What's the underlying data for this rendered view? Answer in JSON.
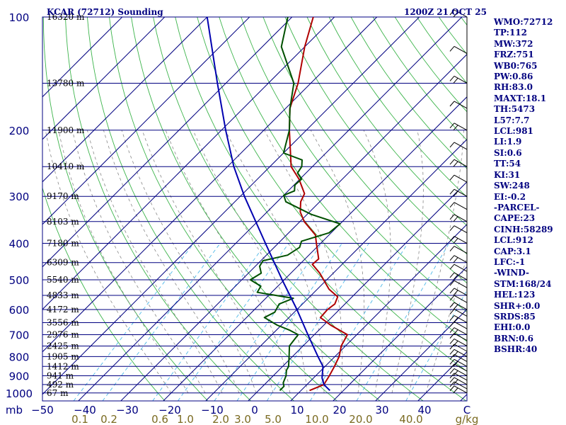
{
  "chart_data": {
    "type": "skew-t sounding",
    "title": "KCAR (72712) Sounding",
    "time_label": "1200Z 21 OCT 25",
    "pressure_axis_unit": "mb",
    "pressure_levels": [
      100,
      200,
      300,
      400,
      500,
      600,
      700,
      800,
      900,
      1000
    ],
    "height_labels": [
      {
        "p": 100,
        "label": "16320 m"
      },
      {
        "p": 150,
        "label": "13780 m"
      },
      {
        "p": 200,
        "label": "11900 m"
      },
      {
        "p": 250,
        "label": "10410 m"
      },
      {
        "p": 300,
        "label": "9170 m"
      },
      {
        "p": 350,
        "label": "8103 m"
      },
      {
        "p": 400,
        "label": "7180 m"
      },
      {
        "p": 450,
        "label": "6309 m"
      },
      {
        "p": 500,
        "label": "5540 m"
      },
      {
        "p": 550,
        "label": "4833 m"
      },
      {
        "p": 600,
        "label": "4172 m"
      },
      {
        "p": 650,
        "label": "3556 m"
      },
      {
        "p": 700,
        "label": "2976 m"
      },
      {
        "p": 750,
        "label": "2425 m"
      },
      {
        "p": 800,
        "label": "1905 m"
      },
      {
        "p": 850,
        "label": "1412 m"
      },
      {
        "p": 900,
        "label": "941 m"
      },
      {
        "p": 950,
        "label": "492 m"
      },
      {
        "p": 1000,
        "label": "67 m"
      }
    ],
    "temperature_ticks": [
      "-50",
      "-40",
      "-30",
      "-20",
      "-10",
      "0",
      "10",
      "20",
      "30",
      "40",
      "C"
    ],
    "mixing_ratio_labels": [
      "0.1",
      "0.2",
      "0.6",
      "1.0",
      "2.0",
      "3.0",
      "5.0",
      "10.0",
      "20.0",
      "40.0",
      "g/kg"
    ],
    "mixing_ratio_values": [
      0.1,
      0.2,
      0.6,
      1.0,
      2.0,
      3.0,
      5.0,
      10.0,
      20.0,
      40.0
    ],
    "series": [
      {
        "key": "temperature",
        "color": "#b00000",
        "points": [
          [
            985,
            12
          ],
          [
            950,
            14
          ],
          [
            900,
            13.2
          ],
          [
            850,
            12.2
          ],
          [
            800,
            11
          ],
          [
            750,
            9
          ],
          [
            700,
            7.8
          ],
          [
            660,
            1.6
          ],
          [
            630,
            -2.6
          ],
          [
            600,
            -2.8
          ],
          [
            580,
            -2.4
          ],
          [
            555,
            -3.4
          ],
          [
            530,
            -7.2
          ],
          [
            480,
            -13.2
          ],
          [
            455,
            -17
          ],
          [
            440,
            -16.8
          ],
          [
            400,
            -21
          ],
          [
            380,
            -23.2
          ],
          [
            350,
            -29
          ],
          [
            330,
            -32.2
          ],
          [
            310,
            -34.5
          ],
          [
            295,
            -35.5
          ],
          [
            270,
            -40.2
          ],
          [
            250,
            -45
          ],
          [
            200,
            -54
          ],
          [
            175,
            -59
          ],
          [
            150,
            -63
          ],
          [
            120,
            -70
          ],
          [
            100,
            -75
          ]
        ]
      },
      {
        "key": "dewpoint",
        "color": "#005000",
        "points": [
          [
            985,
            5
          ],
          [
            960,
            5
          ],
          [
            940,
            4
          ],
          [
            900,
            3
          ],
          [
            870,
            1.8
          ],
          [
            850,
            1.4
          ],
          [
            800,
            -0.8
          ],
          [
            750,
            -3.2
          ],
          [
            700,
            -3.8
          ],
          [
            680,
            -7
          ],
          [
            660,
            -11
          ],
          [
            630,
            -15.8
          ],
          [
            610,
            -14.6
          ],
          [
            580,
            -15.5
          ],
          [
            560,
            -13.5
          ],
          [
            540,
            -23.4
          ],
          [
            520,
            -24
          ],
          [
            500,
            -28
          ],
          [
            480,
            -27
          ],
          [
            460,
            -29
          ],
          [
            445,
            -29.5
          ],
          [
            430,
            -25
          ],
          [
            410,
            -24
          ],
          [
            395,
            -25
          ],
          [
            375,
            -20.5
          ],
          [
            355,
            -20
          ],
          [
            335,
            -29
          ],
          [
            310,
            -38
          ],
          [
            298,
            -40
          ],
          [
            290,
            -38.5
          ],
          [
            280,
            -39.8
          ],
          [
            270,
            -39.6
          ],
          [
            260,
            -42
          ],
          [
            250,
            -42.5
          ],
          [
            240,
            -44
          ],
          [
            230,
            -50
          ],
          [
            200,
            -54
          ],
          [
            175,
            -59
          ],
          [
            150,
            -64
          ],
          [
            120,
            -75.5
          ],
          [
            100,
            -81
          ]
        ]
      },
      {
        "key": "parcel",
        "color": "#0000b0",
        "points": [
          [
            985,
            16.8
          ],
          [
            950,
            14
          ],
          [
            912,
            12
          ],
          [
            850,
            9.5
          ],
          [
            800,
            6
          ],
          [
            700,
            -1.5
          ],
          [
            600,
            -10
          ],
          [
            500,
            -20.5
          ],
          [
            400,
            -33
          ],
          [
            300,
            -49
          ],
          [
            250,
            -58.5
          ],
          [
            200,
            -69
          ],
          [
            150,
            -82
          ],
          [
            100,
            -100
          ]
        ]
      }
    ],
    "wind_levels": [
      1000,
      975,
      950,
      925,
      900,
      875,
      850,
      825,
      800,
      775,
      750,
      725,
      700,
      675,
      650,
      625,
      600,
      575,
      550,
      525,
      500,
      475,
      450,
      425,
      400,
      375,
      350,
      325,
      300,
      275,
      250,
      225,
      200,
      175,
      150,
      125,
      100
    ]
  },
  "indices": [
    "WMO:72712",
    "TP:112",
    "MW:372",
    "FRZ:751",
    "WB0:765",
    "PW:0.86",
    "RH:83.0",
    "MAXT:18.1",
    "TH:5473",
    "L57:7.7",
    "LCL:981",
    "LI:1.9",
    "SI:0.6",
    "TT:54",
    "KI:31",
    "SW:248",
    "EI:-0.2",
    "-PARCEL-",
    "CAPE:23",
    "CINH:58289",
    "LCL:912",
    "CAP:3.1",
    "LFC:-1",
    "-WIND-",
    "STM:168/24",
    "HEL:123",
    "SHR+:0.0",
    "SRDS:85",
    "EHI:0.0",
    "BRN:0.6",
    "BSHR:40"
  ]
}
